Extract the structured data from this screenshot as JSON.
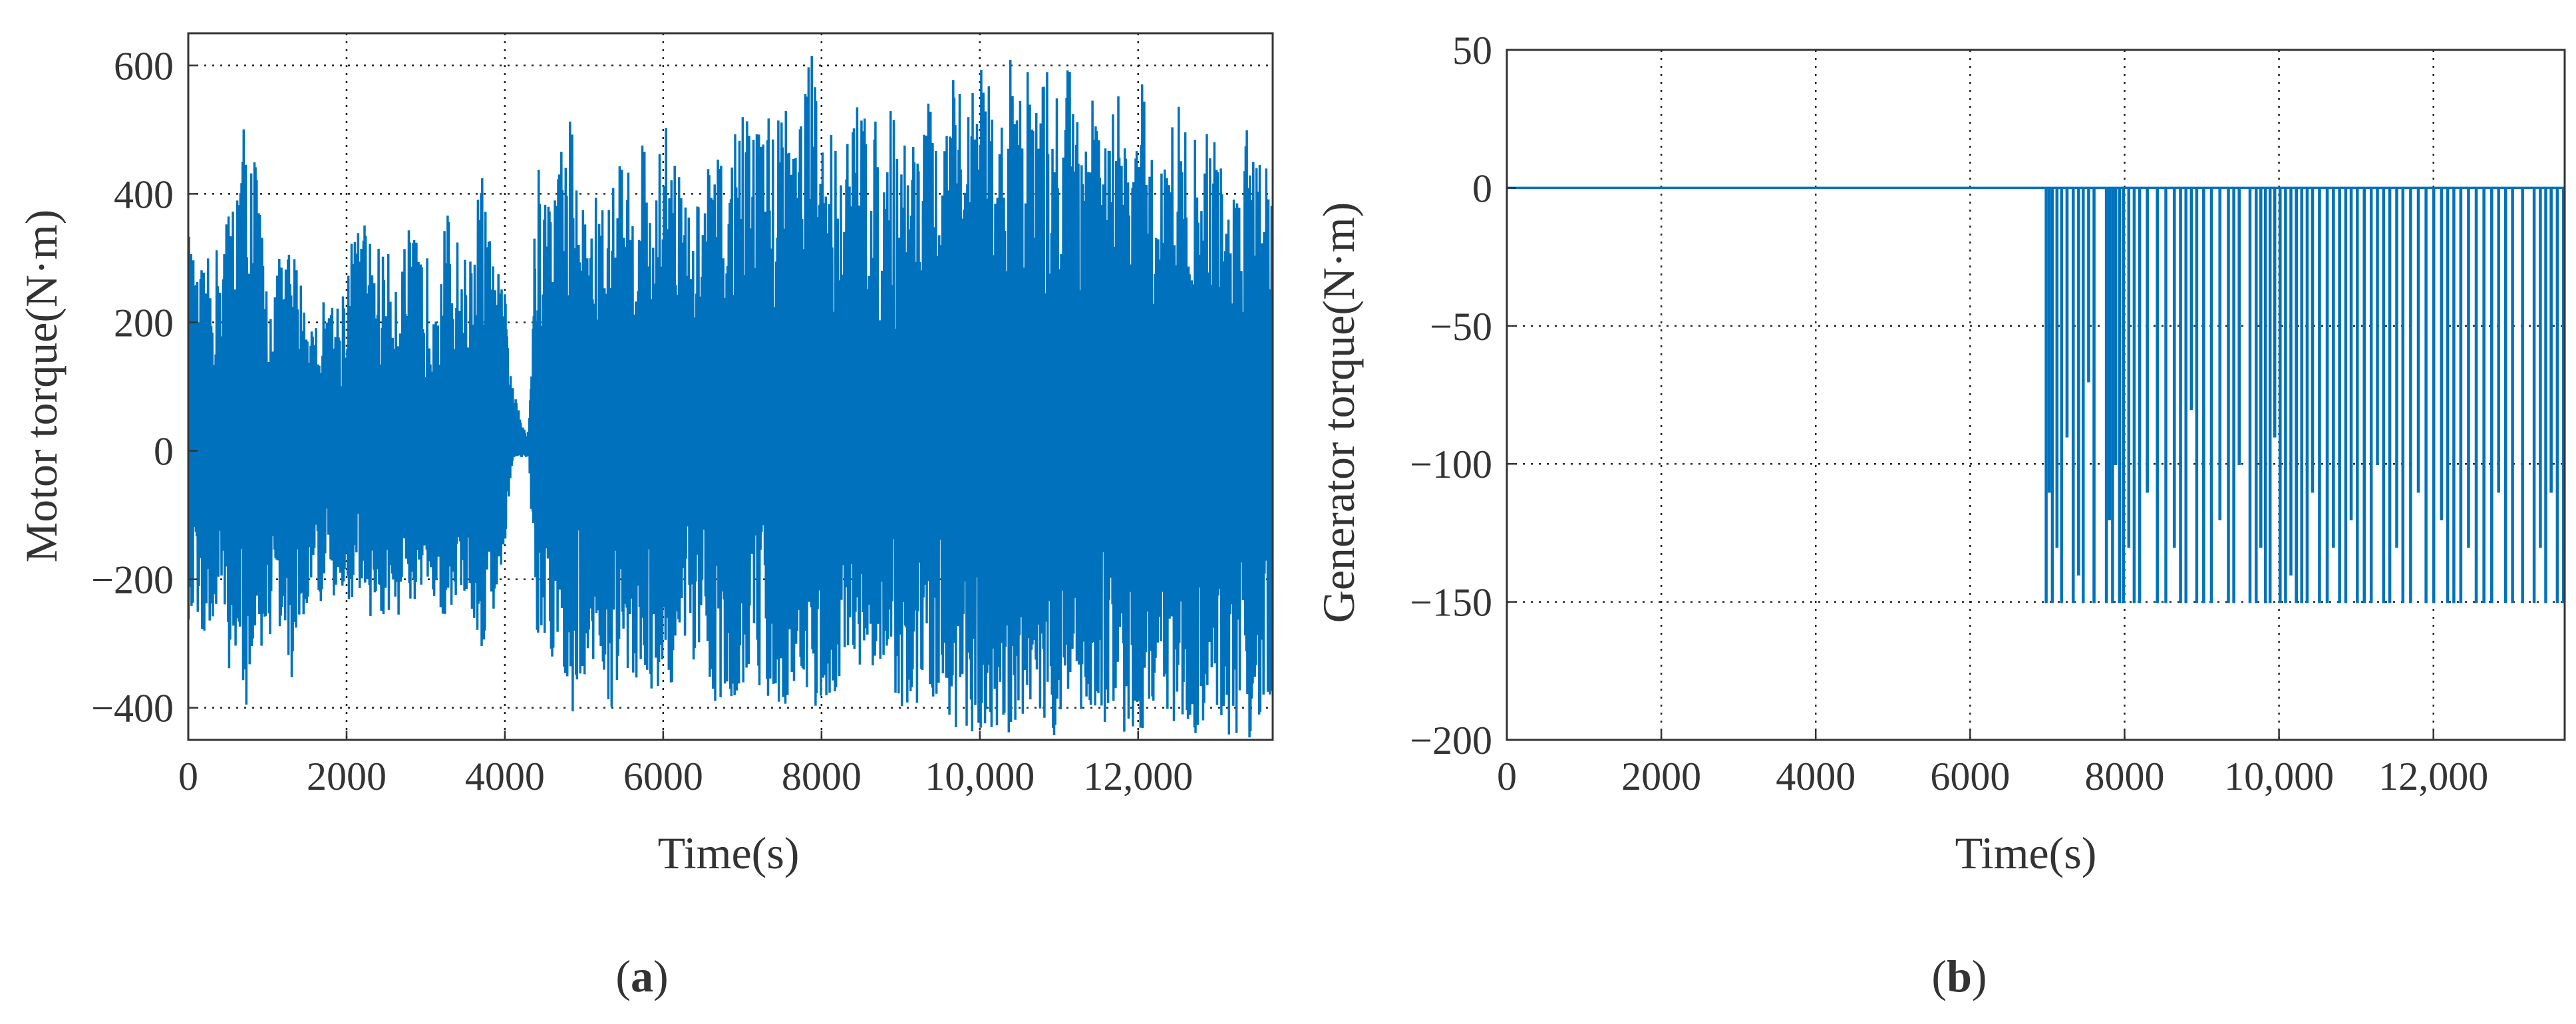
{
  "colors": {
    "series": "#0072BD",
    "axis": "#333333",
    "grid": "#222222",
    "background": "#ffffff"
  },
  "chart_data": [
    {
      "type": "line",
      "panel_label": "a",
      "title": "",
      "xlabel": "Time(s)",
      "ylabel": "Motor torque(N·m)",
      "xlim": [
        0,
        13700
      ],
      "ylim": [
        -450,
        650
      ],
      "xticks": [
        0,
        2000,
        4000,
        6000,
        8000,
        10000,
        12000
      ],
      "xtick_labels": [
        "0",
        "2000",
        "4000",
        "6000",
        "8000",
        "10,000",
        "12,000"
      ],
      "yticks": [
        -400,
        -200,
        0,
        200,
        400,
        600
      ],
      "ytick_labels": [
        "−400",
        "−200",
        "0",
        "200",
        "400",
        "600"
      ],
      "grid": true,
      "series": [
        {
          "color": "#0072BD",
          "style": "dense oscillation between sampled extremes; near-zero gap ~4000–4400 s",
          "x": [
            0,
            100,
            250,
            400,
            550,
            700,
            850,
            1000,
            1150,
            1300,
            1450,
            1600,
            1750,
            1900,
            2050,
            2200,
            2350,
            2500,
            2650,
            2800,
            2950,
            3100,
            3250,
            3400,
            3550,
            3700,
            3850,
            4000,
            4100,
            4200,
            4300,
            4400,
            4550,
            4700,
            4850,
            5000,
            5150,
            5300,
            5450,
            5600,
            5750,
            5900,
            6050,
            6200,
            6350,
            6500,
            6650,
            6800,
            6950,
            7100,
            7250,
            7400,
            7550,
            7700,
            7850,
            8000,
            8150,
            8300,
            8450,
            8600,
            8750,
            8900,
            9050,
            9200,
            9350,
            9500,
            9650,
            9800,
            9950,
            10100,
            10250,
            10400,
            10550,
            10700,
            10850,
            11000,
            11150,
            11300,
            11450,
            11600,
            11750,
            11900,
            12050,
            12200,
            12350,
            12500,
            12650,
            12800,
            12950,
            13100,
            13250,
            13400,
            13550,
            13700
          ],
          "max": [
            350,
            270,
            300,
            330,
            410,
            520,
            470,
            250,
            300,
            330,
            260,
            200,
            250,
            240,
            330,
            370,
            330,
            310,
            300,
            350,
            310,
            300,
            380,
            330,
            290,
            450,
            300,
            250,
            100,
            50,
            40,
            450,
            420,
            480,
            550,
            380,
            400,
            390,
            480,
            420,
            520,
            400,
            580,
            460,
            350,
            430,
            480,
            420,
            560,
            500,
            560,
            510,
            600,
            520,
            650,
            500,
            520,
            480,
            550,
            600,
            440,
            560,
            500,
            520,
            560,
            430,
            580,
            550,
            620,
            600,
            480,
            640,
            650,
            540,
            600,
            560,
            630,
            600,
            540,
            500,
            560,
            470,
            580,
            430,
            500,
            560,
            480,
            500,
            530,
            400,
            440,
            560,
            540,
            400
          ],
          "min": [
            -290,
            -250,
            -320,
            -280,
            -360,
            -420,
            -330,
            -300,
            -280,
            -380,
            -260,
            -230,
            -250,
            -250,
            -230,
            -220,
            -280,
            -270,
            -260,
            -270,
            -240,
            -250,
            -260,
            -230,
            -240,
            -320,
            -260,
            -150,
            -10,
            -10,
            -10,
            -300,
            -350,
            -330,
            -420,
            -360,
            -330,
            -390,
            -420,
            -350,
            -380,
            -370,
            -390,
            -330,
            -350,
            -350,
            -390,
            -380,
            -390,
            -340,
            -380,
            -390,
            -420,
            -330,
            -420,
            -400,
            -380,
            -350,
            -370,
            -340,
            -330,
            -380,
            -440,
            -420,
            -360,
            -440,
            -450,
            -430,
            -440,
            -450,
            -430,
            -450,
            -440,
            -430,
            -450,
            -440,
            -450,
            -430,
            -440,
            -420,
            -450,
            -430,
            -440,
            -400,
            -420,
            -430,
            -450,
            -440,
            -430,
            -450,
            -440,
            -450,
            -450,
            -400
          ]
        }
      ]
    },
    {
      "type": "line",
      "panel_label": "b",
      "title": "",
      "xlabel": "Time(s)",
      "ylabel": "Generator torque(N·m)",
      "xlim": [
        0,
        13700
      ],
      "ylim": [
        -200,
        50
      ],
      "xticks": [
        0,
        2000,
        4000,
        6000,
        8000,
        10000,
        12000
      ],
      "xtick_labels": [
        "0",
        "2000",
        "4000",
        "6000",
        "8000",
        "10,000",
        "12,000"
      ],
      "yticks": [
        -200,
        -150,
        -100,
        -50,
        0,
        50
      ],
      "ytick_labels": [
        "−200",
        "−150",
        "−100",
        "−50",
        "0",
        "50"
      ],
      "grid": true,
      "series": [
        {
          "color": "#0072BD",
          "baseline": 0,
          "floor": -150,
          "drop_times": [
            6980,
            7020,
            7060,
            7120,
            7180,
            7250,
            7330,
            7400,
            7460,
            7530,
            7600,
            7760,
            7800,
            7840,
            7880,
            7930,
            7980,
            8050,
            8120,
            8190,
            8290,
            8420,
            8530,
            8640,
            8720,
            8790,
            8860,
            8930,
            9020,
            9120,
            9230,
            9340,
            9410,
            9480,
            9620,
            9700,
            9760,
            9820,
            9880,
            9940,
            10010,
            10080,
            10150,
            10220,
            10290,
            10360,
            10430,
            10520,
            10620,
            10700,
            10780,
            10860,
            10930,
            11010,
            11100,
            11190,
            11270,
            11350,
            11430,
            11520,
            11600,
            11700,
            11800,
            11900,
            12000,
            12100,
            12180,
            12260,
            12350,
            12450,
            12550,
            12650,
            12750,
            12840,
            12930,
            13020,
            13150,
            13300,
            13380,
            13450,
            13520,
            13600,
            13680
          ],
          "drop_depths": [
            -150,
            -110,
            -150,
            -130,
            -150,
            -90,
            -150,
            -140,
            -150,
            -70,
            -150,
            -150,
            -120,
            -150,
            -100,
            -150,
            -150,
            -130,
            -150,
            -150,
            -110,
            -150,
            -150,
            -130,
            -150,
            -150,
            -80,
            -150,
            -150,
            -150,
            -120,
            -150,
            -150,
            -100,
            -150,
            -150,
            -130,
            -150,
            -150,
            -90,
            -150,
            -150,
            -140,
            -150,
            -150,
            -150,
            -110,
            -150,
            -150,
            -130,
            -150,
            -150,
            -120,
            -150,
            -150,
            -150,
            -100,
            -150,
            -150,
            -130,
            -150,
            -150,
            -110,
            -150,
            -150,
            -120,
            -150,
            -150,
            -150,
            -130,
            -150,
            -150,
            -150,
            -110,
            -150,
            -150,
            -150,
            -150,
            -130,
            -150,
            -110,
            -150,
            -150
          ]
        }
      ]
    }
  ]
}
